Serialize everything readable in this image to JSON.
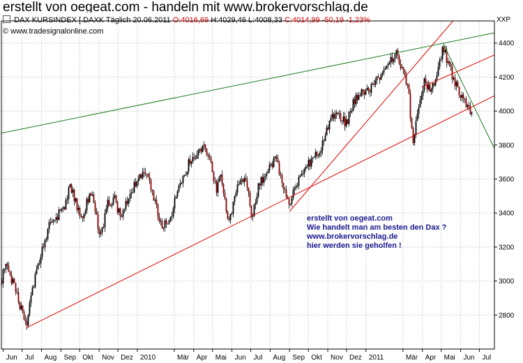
{
  "title": "erstellt von oegeat.com - handeln mit www.brokervorschlag.de",
  "header": {
    "instrument": "DAX KURSINDEX [.DAXK",
    "period": "Täglich",
    "date": "20.06.2011",
    "open": "O:4016,69",
    "high": "H:4029,46",
    "low": "L:4008,33",
    "close_change": "C:4014,99 -50,19 -1,23%",
    "copyright": "© www.tradesignalonline.com",
    "axis_unit": "XXP"
  },
  "annotation": [
    "erstellt von oegeat.com",
    "Wie handelt man am besten den Dax ?",
    "www.brokervorschlag.de",
    "hier werden sie geholfen !"
  ],
  "colors": {
    "bull": "#000000",
    "bear": "#8b0000",
    "support": "#e00000",
    "channel": "#e00000",
    "resistance": "#1f7a1f",
    "annotation": "#1a1a8c"
  },
  "chart_data": {
    "type": "candlestick",
    "title": "DAX KURSINDEX [.DAXK",
    "y_axis_side": "right",
    "ylim": [
      2600,
      4530
    ],
    "yticks": [
      2800,
      3000,
      3200,
      3400,
      3600,
      3800,
      4000,
      4200,
      4400
    ],
    "xlim": [
      "2009-05-29",
      "2011-07-25"
    ],
    "grid": true,
    "x_tick_labels": [
      {
        "label": "Jun",
        "date": "2009-06-01"
      },
      {
        "label": "Jul",
        "date": "2009-07-01"
      },
      {
        "label": "Aug",
        "date": "2009-08-01"
      },
      {
        "label": "Sep",
        "date": "2009-09-01"
      },
      {
        "label": "Okt",
        "date": "2009-10-01"
      },
      {
        "label": "Nov",
        "date": "2009-11-01"
      },
      {
        "label": "Dez",
        "date": "2009-12-01"
      },
      {
        "label": "2010",
        "date": "2010-01-01"
      },
      {
        "label": "Mär",
        "date": "2010-03-01"
      },
      {
        "label": "Apr",
        "date": "2010-04-01"
      },
      {
        "label": "Mai",
        "date": "2010-05-01"
      },
      {
        "label": "Jun",
        "date": "2010-06-01"
      },
      {
        "label": "Jul",
        "date": "2010-07-01"
      },
      {
        "label": "Aug",
        "date": "2010-08-01"
      },
      {
        "label": "Sep",
        "date": "2010-09-01"
      },
      {
        "label": "Okt",
        "date": "2010-10-01"
      },
      {
        "label": "Nov",
        "date": "2010-11-01"
      },
      {
        "label": "Dez",
        "date": "2010-12-01"
      },
      {
        "label": "2011",
        "date": "2011-01-01"
      },
      {
        "label": "Mär",
        "date": "2011-03-01"
      },
      {
        "label": "Apr",
        "date": "2011-04-01"
      },
      {
        "label": "Mai",
        "date": "2011-05-01"
      },
      {
        "label": "Jun",
        "date": "2011-06-01"
      },
      {
        "label": "Jul",
        "date": "2011-07-01"
      }
    ],
    "price_path": [
      {
        "date": "2009-05-29",
        "value": 3000
      },
      {
        "date": "2009-06-03",
        "value": 3100
      },
      {
        "date": "2009-06-10",
        "value": 3050
      },
      {
        "date": "2009-06-18",
        "value": 2960
      },
      {
        "date": "2009-06-26",
        "value": 2870
      },
      {
        "date": "2009-07-03",
        "value": 2800
      },
      {
        "date": "2009-07-08",
        "value": 2760
      },
      {
        "date": "2009-07-14",
        "value": 2870
      },
      {
        "date": "2009-07-22",
        "value": 3050
      },
      {
        "date": "2009-08-03",
        "value": 3200
      },
      {
        "date": "2009-08-13",
        "value": 3340
      },
      {
        "date": "2009-08-24",
        "value": 3380
      },
      {
        "date": "2009-09-04",
        "value": 3420
      },
      {
        "date": "2009-09-16",
        "value": 3560
      },
      {
        "date": "2009-09-25",
        "value": 3460
      },
      {
        "date": "2009-10-05",
        "value": 3360
      },
      {
        "date": "2009-10-16",
        "value": 3520
      },
      {
        "date": "2009-10-23",
        "value": 3480
      },
      {
        "date": "2009-11-02",
        "value": 3240
      },
      {
        "date": "2009-11-13",
        "value": 3450
      },
      {
        "date": "2009-11-25",
        "value": 3490
      },
      {
        "date": "2009-12-04",
        "value": 3380
      },
      {
        "date": "2009-12-15",
        "value": 3480
      },
      {
        "date": "2010-01-05",
        "value": 3620
      },
      {
        "date": "2010-01-14",
        "value": 3660
      },
      {
        "date": "2010-01-25",
        "value": 3500
      },
      {
        "date": "2010-02-08",
        "value": 3320
      },
      {
        "date": "2010-02-22",
        "value": 3370
      },
      {
        "date": "2010-03-08",
        "value": 3560
      },
      {
        "date": "2010-03-22",
        "value": 3680
      },
      {
        "date": "2010-04-06",
        "value": 3760
      },
      {
        "date": "2010-04-15",
        "value": 3790
      },
      {
        "date": "2010-04-27",
        "value": 3740
      },
      {
        "date": "2010-05-07",
        "value": 3510
      },
      {
        "date": "2010-05-13",
        "value": 3640
      },
      {
        "date": "2010-05-25",
        "value": 3340
      },
      {
        "date": "2010-06-04",
        "value": 3470
      },
      {
        "date": "2010-06-15",
        "value": 3610
      },
      {
        "date": "2010-06-25",
        "value": 3560
      },
      {
        "date": "2010-07-02",
        "value": 3370
      },
      {
        "date": "2010-07-13",
        "value": 3560
      },
      {
        "date": "2010-07-27",
        "value": 3650
      },
      {
        "date": "2010-08-09",
        "value": 3720
      },
      {
        "date": "2010-08-20",
        "value": 3580
      },
      {
        "date": "2010-08-31",
        "value": 3440
      },
      {
        "date": "2010-09-13",
        "value": 3590
      },
      {
        "date": "2010-09-27",
        "value": 3680
      },
      {
        "date": "2010-10-08",
        "value": 3720
      },
      {
        "date": "2010-10-20",
        "value": 3760
      },
      {
        "date": "2010-11-05",
        "value": 3950
      },
      {
        "date": "2010-11-17",
        "value": 3980
      },
      {
        "date": "2010-11-30",
        "value": 3930
      },
      {
        "date": "2010-12-13",
        "value": 4060
      },
      {
        "date": "2010-12-24",
        "value": 4100
      },
      {
        "date": "2011-01-11",
        "value": 4150
      },
      {
        "date": "2011-01-25",
        "value": 4200
      },
      {
        "date": "2011-02-07",
        "value": 4280
      },
      {
        "date": "2011-02-18",
        "value": 4330
      },
      {
        "date": "2011-02-28",
        "value": 4240
      },
      {
        "date": "2011-03-09",
        "value": 4120
      },
      {
        "date": "2011-03-16",
        "value": 3820
      },
      {
        "date": "2011-03-24",
        "value": 4010
      },
      {
        "date": "2011-04-04",
        "value": 4170
      },
      {
        "date": "2011-04-14",
        "value": 4110
      },
      {
        "date": "2011-04-27",
        "value": 4260
      },
      {
        "date": "2011-05-03",
        "value": 4390
      },
      {
        "date": "2011-05-10",
        "value": 4300
      },
      {
        "date": "2011-05-24",
        "value": 4150
      },
      {
        "date": "2011-06-01",
        "value": 4080
      },
      {
        "date": "2011-06-10",
        "value": 4030
      },
      {
        "date": "2011-06-16",
        "value": 4000
      },
      {
        "date": "2011-06-20",
        "value": 4015
      }
    ],
    "trendlines": [
      {
        "role": "support",
        "from": {
          "date": "2009-07-08",
          "value": 2725
        },
        "to": {
          "date": "2011-07-25",
          "value": 4090
        }
      },
      {
        "role": "channel",
        "from": {
          "date": "2010-09-01",
          "value": 3410
        },
        "to": {
          "date": "2011-05-20",
          "value": 4530
        }
      },
      {
        "role": "channel",
        "from": {
          "date": "2011-03-31",
          "value": 4140
        },
        "to": {
          "date": "2011-07-25",
          "value": 4330
        }
      },
      {
        "role": "resistance",
        "from": {
          "date": "2009-05-29",
          "value": 3870
        },
        "to": {
          "date": "2011-07-25",
          "value": 4460
        }
      },
      {
        "role": "resistance",
        "from": {
          "date": "2011-05-05",
          "value": 4390
        },
        "to": {
          "date": "2011-07-25",
          "value": 3780
        }
      }
    ]
  }
}
